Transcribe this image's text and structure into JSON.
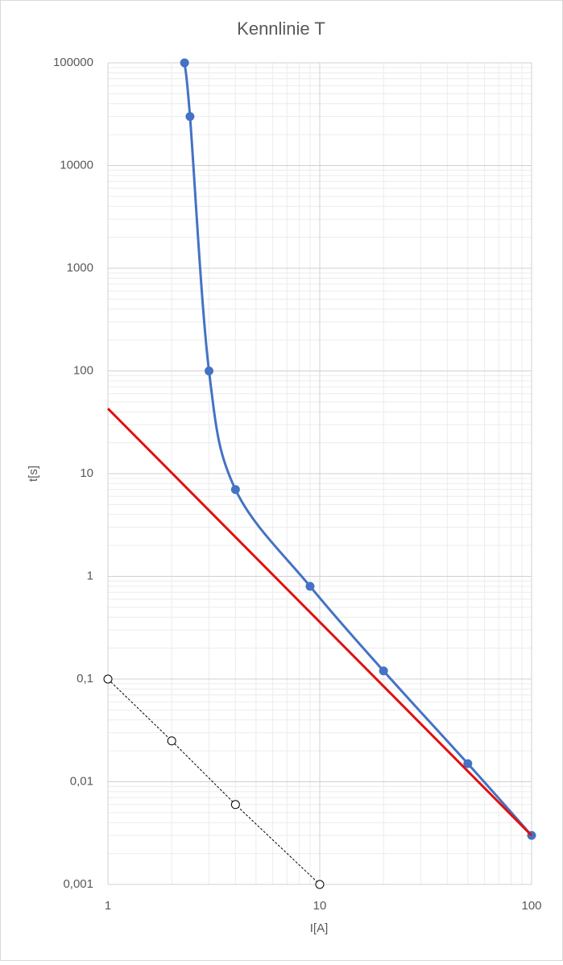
{
  "chart_data": {
    "type": "scatter",
    "title": "Kennlinie T",
    "x_label": "I[A]",
    "y_label": "t[s]",
    "x_log": true,
    "y_log": true,
    "grid": true,
    "minor_grid": true,
    "xlim": [
      1,
      100
    ],
    "xticks": [
      1,
      10,
      100
    ],
    "ylim": [
      0.001,
      100000
    ],
    "yticks": [
      {
        "value": 0.001,
        "label": "0,001"
      },
      {
        "value": 0.01,
        "label": "0,01"
      },
      {
        "value": 0.1,
        "label": "0,1"
      },
      1,
      10,
      100,
      1000,
      10000,
      100000
    ],
    "series": [
      {
        "color": "#4472c4",
        "smooth": true,
        "marker": "filled",
        "x": [
          2.3,
          2.44,
          3,
          4,
          9,
          20,
          50,
          100
        ],
        "values": [
          100000,
          30000,
          100,
          7,
          0.8,
          0.12,
          0.015,
          0.003
        ]
      },
      {
        "color": "#e01010",
        "smooth": false,
        "marker": "none",
        "x": [
          1,
          100
        ],
        "values": [
          43,
          0.003
        ]
      },
      {
        "color": "#000000",
        "smooth": false,
        "marker": "hollow",
        "dashed": true,
        "x": [
          1,
          2,
          4,
          10
        ],
        "values": [
          0.1,
          0.025,
          0.006,
          0.001
        ]
      }
    ]
  }
}
